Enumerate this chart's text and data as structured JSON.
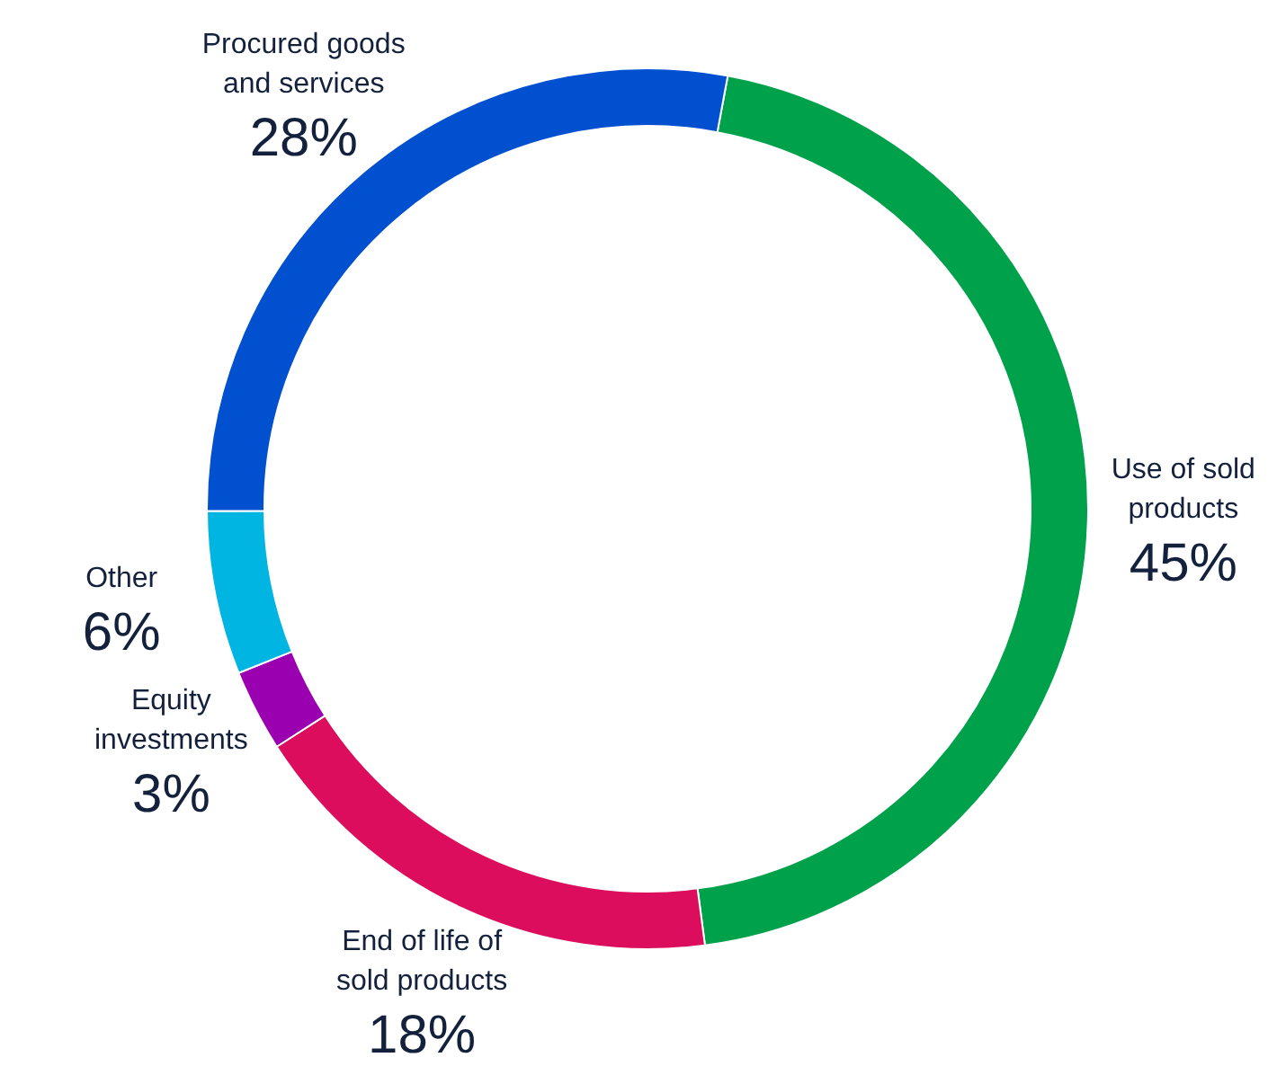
{
  "chart_data": {
    "type": "donut",
    "categories": [
      "Use of sold products",
      "End of life of sold products",
      "Equity investments",
      "Other",
      "Procured goods and services"
    ],
    "values": [
      45,
      18,
      3,
      6,
      28
    ],
    "colors": [
      "#00a14b",
      "#dc0d5c",
      "#9b00b0",
      "#00b5e2",
      "#0050d0"
    ],
    "value_labels": [
      "45%",
      "18%",
      "3%",
      "6%",
      "28%"
    ]
  }
}
